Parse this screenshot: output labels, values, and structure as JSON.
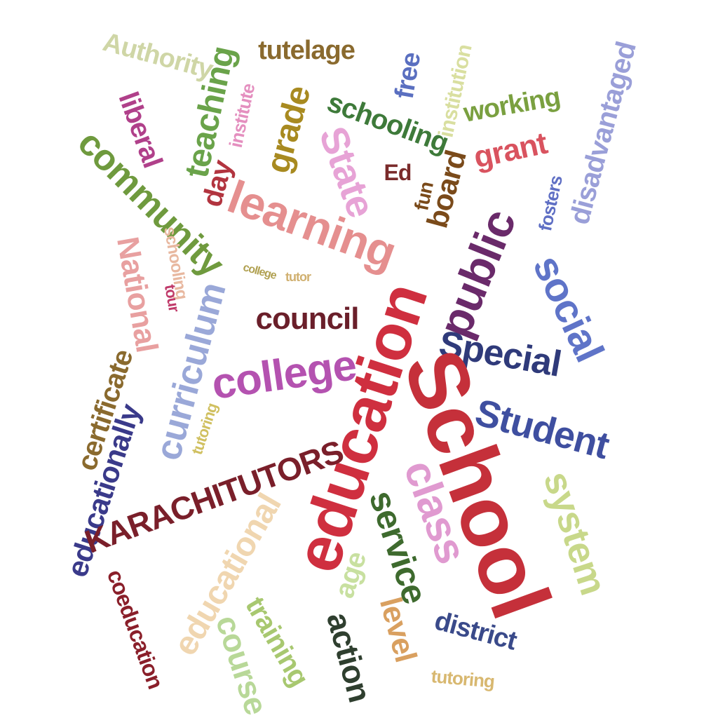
{
  "title": "",
  "words": [
    {
      "text": "Authority",
      "color": "#cfd6a6"
    },
    {
      "text": "teaching",
      "color": "#6aa34a"
    },
    {
      "text": "tutelage",
      "color": "#8a6a2e"
    },
    {
      "text": "free",
      "color": "#5a6fc0"
    },
    {
      "text": "institution",
      "color": "#d9dfa0"
    },
    {
      "text": "disadvantaged",
      "color": "#9a9fd8"
    },
    {
      "text": "liberal",
      "color": "#b0408a"
    },
    {
      "text": "institute",
      "color": "#e48fbf"
    },
    {
      "text": "grade",
      "color": "#a88a20"
    },
    {
      "text": "schooling",
      "color": "#3e7a3a"
    },
    {
      "text": "working",
      "color": "#7aa040"
    },
    {
      "text": "community",
      "color": "#6f9a3e"
    },
    {
      "text": "State",
      "color": "#e7a3d6"
    },
    {
      "text": "Ed",
      "color": "#7a2b2b"
    },
    {
      "text": "grant",
      "color": "#d9535f"
    },
    {
      "text": "day",
      "color": "#b2343f"
    },
    {
      "text": "fun",
      "color": "#7a4a1a"
    },
    {
      "text": "board",
      "color": "#7a4a1a"
    },
    {
      "text": "fosters",
      "color": "#5f6fc4"
    },
    {
      "text": "learning",
      "color": "#e58f8f"
    },
    {
      "text": "public",
      "color": "#6a2a6a"
    },
    {
      "text": "National",
      "color": "#e8a0a0"
    },
    {
      "text": "schooling",
      "color": "#e8b8a0"
    },
    {
      "text": "education",
      "color": "#cf2f3f"
    },
    {
      "text": "social",
      "color": "#5f74c8"
    },
    {
      "text": "tour",
      "color": "#c03a6a"
    },
    {
      "text": "tutor",
      "color": "#d0b070"
    },
    {
      "text": "college",
      "color": "#b0a050"
    },
    {
      "text": "curriculum",
      "color": "#9aa8d8"
    },
    {
      "text": "council",
      "color": "#6a1f2a"
    },
    {
      "text": "Special",
      "color": "#2f3a7a"
    },
    {
      "text": "college",
      "color": "#b452b0"
    },
    {
      "text": "certificate",
      "color": "#8a6a2e"
    },
    {
      "text": "School",
      "color": "#c5303a"
    },
    {
      "text": "tutoring",
      "color": "#d0c060"
    },
    {
      "text": "Student",
      "color": "#3f4fa0"
    },
    {
      "text": "educationally",
      "color": "#3a3a8a"
    },
    {
      "text": "class",
      "color": "#e09ad0"
    },
    {
      "text": "system",
      "color": "#c8d88a"
    },
    {
      "text": "KARACHITUTORS",
      "color": "#7a1f2a"
    },
    {
      "text": "service",
      "color": "#3e6a2e"
    },
    {
      "text": "educational",
      "color": "#f0d6b0"
    },
    {
      "text": "age",
      "color": "#c8e0a0"
    },
    {
      "text": "coeducation",
      "color": "#8a1f2a"
    },
    {
      "text": "training",
      "color": "#a8c870"
    },
    {
      "text": "action",
      "color": "#2f3f2f"
    },
    {
      "text": "level",
      "color": "#d9a060"
    },
    {
      "text": "district",
      "color": "#3a4a8a"
    },
    {
      "text": "course",
      "color": "#b8d898"
    },
    {
      "text": "tutoring",
      "color": "#d8b870"
    }
  ]
}
